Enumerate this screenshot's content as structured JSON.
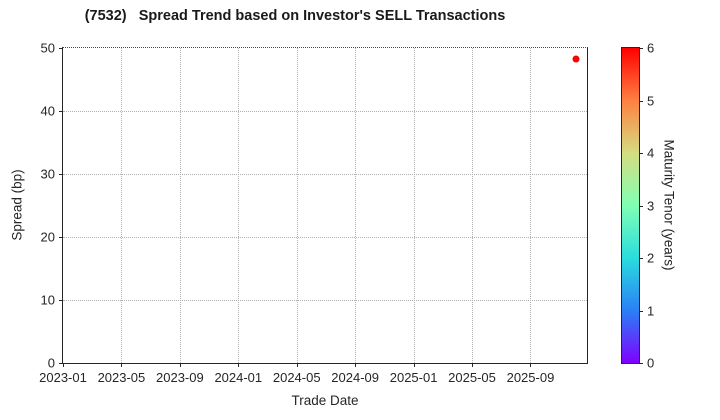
{
  "chart_data": {
    "type": "scatter",
    "title": "(7532)   Spread Trend based on Investor's SELL Transactions",
    "xlabel": "Trade Date",
    "ylabel": "Spread (bp)",
    "grid": true,
    "x_axis": {
      "tick_labels": [
        "2023-01",
        "2023-05",
        "2023-09",
        "2024-01",
        "2024-05",
        "2024-09",
        "2025-01",
        "2025-05",
        "2025-09"
      ],
      "tick_positions_months": [
        0,
        4,
        8,
        12,
        16,
        20,
        24,
        28,
        32
      ],
      "domain_months": [
        0,
        35.87
      ],
      "origin_date": "2023-01"
    },
    "y_axis": {
      "ticks": [
        0,
        10,
        20,
        30,
        40,
        50
      ],
      "lim": [
        0,
        50
      ]
    },
    "points": [
      {
        "trade_date": "2025-12",
        "x_months": 35.1,
        "spread_bp": 48.3,
        "maturity_tenor_years": 6.0,
        "color": "#ff0000"
      }
    ],
    "colorbar": {
      "label": "Maturity Tenor (years)",
      "min": 0,
      "max": 6,
      "ticks": [
        0,
        1,
        2,
        3,
        4,
        5,
        6
      ],
      "colormap": "rainbow",
      "gradient_stops_bottom_to_top": [
        "#8000ff",
        "#2a80f6",
        "#2adddd",
        "#80ffb4",
        "#d5dd80",
        "#ff8042",
        "#ff0000"
      ]
    }
  }
}
